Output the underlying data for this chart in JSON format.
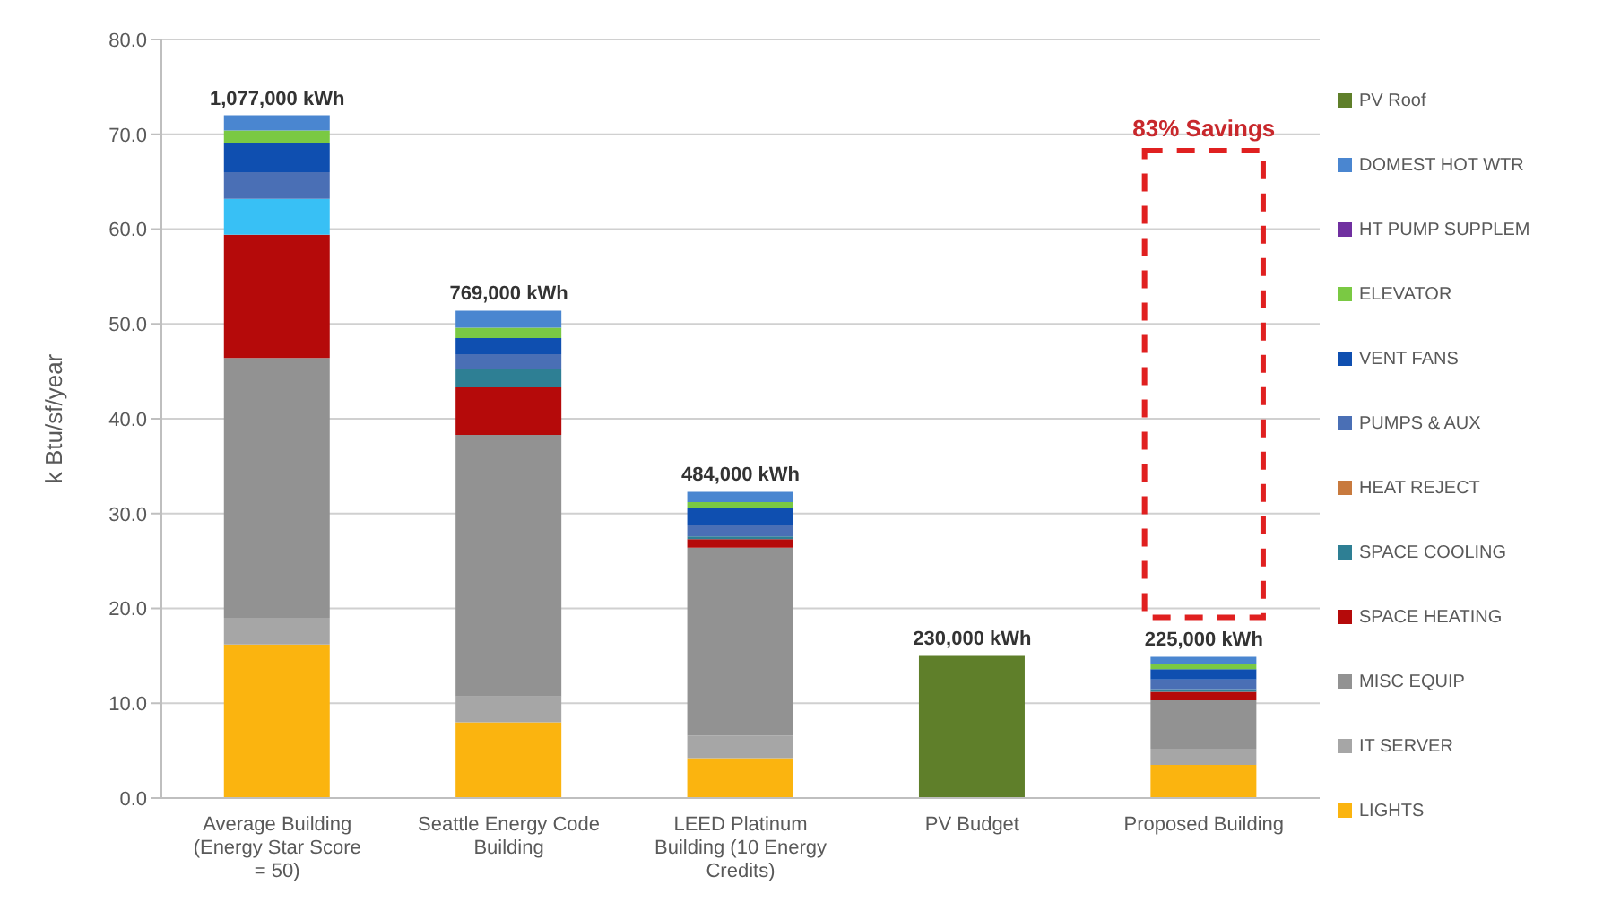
{
  "chart_data": {
    "type": "bar",
    "stacked": true,
    "ylabel": "k Btu/sf/year",
    "categories": [
      "Average Building (Energy Star Score = 50)",
      "Seattle Energy Code Building",
      "LEED Platinum Building (10 Energy Credits)",
      "PV Budget",
      "Proposed Building"
    ],
    "series": [
      {
        "name": "LIGHTS",
        "color": "#fbb40f",
        "values": [
          16.2,
          8.0,
          4.2,
          null,
          3.5
        ]
      },
      {
        "name": "IT SERVER",
        "color": "#a6a6a6",
        "values": [
          2.8,
          2.7,
          2.4,
          null,
          1.7
        ]
      },
      {
        "name": "MISC EQUIP",
        "color": "#929292",
        "values": [
          27.4,
          27.6,
          19.8,
          null,
          5.1
        ]
      },
      {
        "name": "SPACE HEATING",
        "color": "#b50a0a",
        "values": [
          13.0,
          5.0,
          0.9,
          null,
          0.9
        ]
      },
      {
        "name": "SPACE COOLING",
        "color": "#2e7f94",
        "colors": [
          "#38c0f5",
          "#2e7f94",
          "#2e7f94",
          "#2e7f94",
          "#2e7f94"
        ],
        "values": [
          3.8,
          2.0,
          0.3,
          null,
          0.3
        ]
      },
      {
        "name": "HEAT REJECT",
        "color": "#c87a3e",
        "values": [
          null,
          null,
          null,
          null,
          null
        ]
      },
      {
        "name": "PUMPS & AUX",
        "color": "#4a6fb5",
        "values": [
          2.8,
          1.5,
          1.2,
          null,
          1.0
        ]
      },
      {
        "name": "VENT FANS",
        "color": "#0f4fb0",
        "values": [
          3.1,
          1.7,
          1.8,
          null,
          1.1
        ]
      },
      {
        "name": "ELEVATOR",
        "color": "#7ac943",
        "values": [
          1.3,
          1.1,
          0.6,
          null,
          0.5
        ]
      },
      {
        "name": "HT PUMP SUPPLEM",
        "color": "#7030a0",
        "values": [
          null,
          null,
          null,
          null,
          null
        ]
      },
      {
        "name": "DOMEST HOT WTR",
        "color": "#4a86d0",
        "values": [
          1.6,
          1.8,
          1.1,
          null,
          0.8
        ]
      },
      {
        "name": "PV Roof",
        "color": "#5f7f2a",
        "values": [
          null,
          null,
          null,
          15.0,
          null
        ]
      }
    ],
    "annotations": [
      {
        "text": "1,077,000 kWh",
        "x": "Average Building (Energy Star Score = 50)",
        "y": 72.0
      },
      {
        "text": "769,000 kWh",
        "x": "Seattle Energy Code Building",
        "y": 51.4
      },
      {
        "text": "484,000 kWh",
        "x": "LEED Platinum Building (10 Energy Credits)",
        "y": 32.3
      },
      {
        "text": "230,000 kWh",
        "x": "PV Budget",
        "y": 15.0
      },
      {
        "text": "225,000 kWh",
        "x": "Proposed Building",
        "y": 14.9
      },
      "83% Savings"
    ],
    "ylim": [
      0,
      80
    ],
    "yticks": [
      {
        "value": 0,
        "label": "0.0"
      },
      {
        "value": 10,
        "label": "10.0"
      },
      {
        "value": 20,
        "label": "20.0"
      },
      {
        "value": 30,
        "label": "30.0"
      },
      {
        "value": 40,
        "label": "40.0"
      },
      {
        "value": 50,
        "label": "50.0"
      },
      {
        "value": 60,
        "label": "60.0"
      },
      {
        "value": 70,
        "label": "70.0"
      },
      {
        "value": 80,
        "label": "80.0"
      }
    ],
    "grid": "y",
    "legend": "right"
  }
}
